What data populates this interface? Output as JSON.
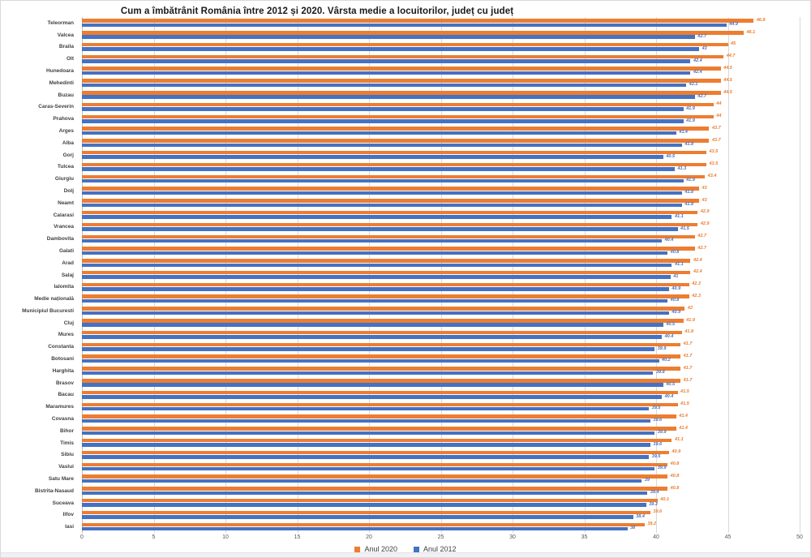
{
  "chart_data": {
    "type": "bar",
    "orientation": "horizontal",
    "title": "Cum a îmbătrânit România între 2012 și 2020. Vârsta medie a locuitorilor, județ cu județ",
    "categories": [
      "Teleorman",
      "Valcea",
      "Braila",
      "Olt",
      "Hunedoara",
      "Mehedinti",
      "Buzau",
      "Caras-Severin",
      "Prahova",
      "Arges",
      "Alba",
      "Gorj",
      "Tulcea",
      "Giurgiu",
      "Dolj",
      "Neamt",
      "Calarasi",
      "Vrancea",
      "Dambovita",
      "Galati",
      "Arad",
      "Salaj",
      "Ialomita",
      "Medie națională",
      "Municipiul Bucuresti",
      "Cluj",
      "Mures",
      "Constanta",
      "Botosani",
      "Harghita",
      "Brasov",
      "Bacau",
      "Maramures",
      "Covasna",
      "Bihor",
      "Timis",
      "Sibiu",
      "Vaslui",
      "Satu Mare",
      "Bistrita-Nasaud",
      "Suceava",
      "Ilfov",
      "Iasi"
    ],
    "series": [
      {
        "name": "Anul 2020",
        "color": "#ED7D31",
        "values": [
          46.8,
          46.1,
          45,
          44.7,
          44.5,
          44.5,
          44.5,
          44,
          44,
          43.7,
          43.7,
          43.5,
          43.5,
          43.4,
          43,
          43,
          42.9,
          42.9,
          42.7,
          42.7,
          42.4,
          42.4,
          42.3,
          42.3,
          42,
          41.9,
          41.8,
          41.7,
          41.7,
          41.7,
          41.7,
          41.5,
          41.5,
          41.4,
          41.4,
          41.1,
          40.9,
          40.8,
          40.8,
          40.8,
          40.1,
          39.6,
          39.2
        ]
      },
      {
        "name": "Anul 2012",
        "color": "#4472C4",
        "values": [
          44.9,
          42.7,
          43,
          42.4,
          42.4,
          42.1,
          42.7,
          41.9,
          41.9,
          41.4,
          41.8,
          40.5,
          41.3,
          41.9,
          41.8,
          41.8,
          41.1,
          41.5,
          40.4,
          40.8,
          41.1,
          41,
          40.9,
          40.8,
          40.9,
          40.5,
          40.4,
          39.9,
          40.2,
          39.8,
          40.5,
          40.4,
          39.5,
          39.6,
          39.9,
          39.6,
          39.5,
          39.9,
          39,
          39.4,
          39.3,
          38.4,
          38
        ]
      }
    ],
    "xlim": [
      0,
      50
    ],
    "x_ticks": [
      0,
      5,
      10,
      15,
      20,
      25,
      30,
      35,
      40,
      45,
      50
    ],
    "grid": true,
    "value_labels": true,
    "legend_position": "bottom"
  }
}
